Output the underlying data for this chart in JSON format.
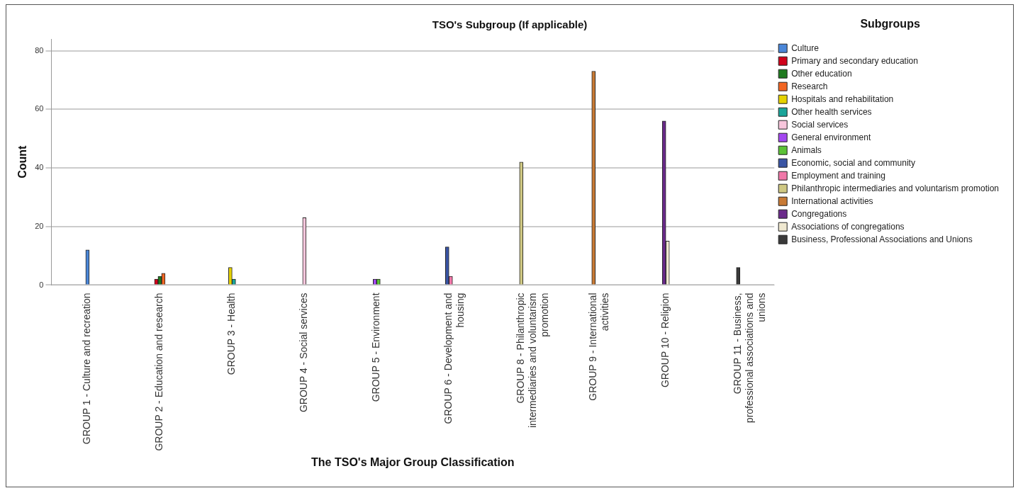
{
  "chart_data": {
    "type": "bar",
    "title": "TSO's Subgroup (If applicable)",
    "xlabel": "The TSO's Major Group Classification",
    "ylabel": "Count",
    "legend_title": "Subgroups",
    "categories": [
      "GROUP 1 - Culture and recreation",
      "GROUP 2 - Education and research",
      "GROUP 3 - Health",
      "GROUP 4 - Social services",
      "GROUP 5 - Environment",
      "GROUP 6 - Development and housing",
      "GROUP 8 - Philanthropic intermediaries and voluntarism promotion",
      "GROUP 9 - International activities",
      "GROUP 10 - Religion",
      "GROUP 11 - Business, professional associations and unions"
    ],
    "series": [
      {
        "name": "Culture",
        "color": "#4a86d8",
        "values": [
          12,
          null,
          null,
          null,
          null,
          null,
          null,
          null,
          null,
          null
        ]
      },
      {
        "name": "Primary and secondary education",
        "color": "#d0021b",
        "values": [
          null,
          2,
          null,
          null,
          null,
          null,
          null,
          null,
          null,
          null
        ]
      },
      {
        "name": "Other education",
        "color": "#1f7a1f",
        "values": [
          null,
          3,
          null,
          null,
          null,
          null,
          null,
          null,
          null,
          null
        ]
      },
      {
        "name": "Research",
        "color": "#f26522",
        "values": [
          null,
          4,
          null,
          null,
          null,
          null,
          null,
          null,
          null,
          null
        ]
      },
      {
        "name": "Hospitals and rehabilitation",
        "color": "#e5d200",
        "values": [
          null,
          null,
          6,
          null,
          null,
          null,
          null,
          null,
          null,
          null
        ]
      },
      {
        "name": "Other health services",
        "color": "#1aa59a",
        "values": [
          null,
          null,
          2,
          null,
          null,
          null,
          null,
          null,
          null,
          null
        ]
      },
      {
        "name": "Social services",
        "color": "#f7c6dc",
        "values": [
          null,
          null,
          null,
          23,
          null,
          null,
          null,
          null,
          null,
          null
        ]
      },
      {
        "name": "General environment",
        "color": "#a347f0",
        "values": [
          null,
          null,
          null,
          null,
          2,
          null,
          null,
          null,
          null,
          null
        ]
      },
      {
        "name": "Animals",
        "color": "#5bc236",
        "values": [
          null,
          null,
          null,
          null,
          2,
          null,
          null,
          null,
          null,
          null
        ]
      },
      {
        "name": "Economic, social and community",
        "color": "#3a55a4",
        "values": [
          null,
          null,
          null,
          null,
          null,
          13,
          null,
          null,
          null,
          null
        ]
      },
      {
        "name": "Employment and training",
        "color": "#f077a8",
        "values": [
          null,
          null,
          null,
          null,
          null,
          3,
          null,
          null,
          null,
          null
        ]
      },
      {
        "name": "Philanthropic intermediaries and voluntarism promotion",
        "color": "#cfc883",
        "values": [
          null,
          null,
          null,
          null,
          null,
          null,
          42,
          null,
          null,
          null
        ]
      },
      {
        "name": "International activities",
        "color": "#c87a35",
        "values": [
          null,
          null,
          null,
          null,
          null,
          null,
          null,
          73,
          null,
          null
        ]
      },
      {
        "name": "Congregations",
        "color": "#6a2a8a",
        "values": [
          null,
          null,
          null,
          null,
          null,
          null,
          null,
          null,
          56,
          null
        ]
      },
      {
        "name": "Associations of congregations",
        "color": "#efe8d0",
        "values": [
          null,
          null,
          null,
          null,
          null,
          null,
          null,
          null,
          15,
          null
        ]
      },
      {
        "name": "Business, Professional Associations and Unions",
        "color": "#3a3a3a",
        "values": [
          null,
          null,
          null,
          null,
          null,
          null,
          null,
          null,
          null,
          6
        ]
      }
    ],
    "ylim": [
      0,
      84
    ],
    "yticks": [
      0,
      20,
      40,
      60,
      80
    ],
    "grid": "y",
    "legend": "right"
  }
}
